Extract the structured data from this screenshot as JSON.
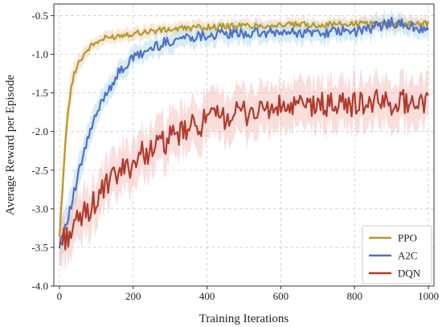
{
  "chart_data": {
    "type": "line",
    "xlabel": "Training Iterations",
    "ylabel": "Average Reward per Episode",
    "xlim": [
      -15,
      1015
    ],
    "ylim": [
      -4.0,
      -0.35
    ],
    "xticks": [
      0,
      200,
      400,
      600,
      800,
      1000
    ],
    "xtick_labels": [
      "0",
      "200",
      "400",
      "600",
      "800",
      "1000"
    ],
    "yticks": [
      -4.0,
      -3.5,
      -3.0,
      -2.5,
      -2.0,
      -1.5,
      -1.0,
      -0.5
    ],
    "ytick_labels": [
      "-4.0",
      "-3.5",
      "-3.0",
      "-2.5",
      "-2.0",
      "-1.5",
      "-1.0",
      "-0.5"
    ],
    "grid": true,
    "legend_position": "bottom-right",
    "series": [
      {
        "name": "PPO",
        "color": "#b59a2a",
        "band_color": "#f3c9a8",
        "x": [
          0,
          10,
          20,
          30,
          40,
          50,
          60,
          70,
          80,
          90,
          100,
          120,
          140,
          160,
          180,
          200,
          250,
          300,
          350,
          400,
          450,
          500,
          550,
          600,
          650,
          700,
          750,
          800,
          850,
          900,
          950,
          1000
        ],
        "y": [
          -3.4,
          -2.6,
          -1.9,
          -1.5,
          -1.25,
          -1.12,
          -1.05,
          -0.98,
          -0.92,
          -0.88,
          -0.85,
          -0.8,
          -0.78,
          -0.76,
          -0.74,
          -0.73,
          -0.7,
          -0.68,
          -0.66,
          -0.65,
          -0.64,
          -0.63,
          -0.63,
          -0.62,
          -0.62,
          -0.62,
          -0.61,
          -0.61,
          -0.6,
          -0.61,
          -0.6,
          -0.6
        ],
        "band": [
          0.35,
          0.3,
          0.25,
          0.2,
          0.15,
          0.12,
          0.1,
          0.09,
          0.08,
          0.08,
          0.08,
          0.08,
          0.08,
          0.08,
          0.08,
          0.08,
          0.08,
          0.08,
          0.08,
          0.08,
          0.08,
          0.08,
          0.08,
          0.08,
          0.08,
          0.08,
          0.08,
          0.08,
          0.08,
          0.08,
          0.08,
          0.08
        ]
      },
      {
        "name": "A2C",
        "color": "#4f6fc7",
        "band_color": "#a8d8ea",
        "x": [
          0,
          10,
          20,
          30,
          40,
          50,
          60,
          80,
          100,
          120,
          140,
          160,
          180,
          200,
          220,
          240,
          260,
          280,
          300,
          320,
          340,
          360,
          380,
          400,
          450,
          500,
          550,
          600,
          650,
          700,
          750,
          800,
          850,
          900,
          950,
          1000
        ],
        "y": [
          -3.45,
          -3.3,
          -3.15,
          -3.0,
          -2.8,
          -2.6,
          -2.4,
          -2.05,
          -1.8,
          -1.55,
          -1.4,
          -1.25,
          -1.15,
          -1.05,
          -1.0,
          -0.95,
          -0.9,
          -0.86,
          -0.83,
          -0.8,
          -0.78,
          -0.77,
          -0.76,
          -0.75,
          -0.74,
          -0.73,
          -0.73,
          -0.72,
          -0.72,
          -0.72,
          -0.71,
          -0.71,
          -0.66,
          -0.58,
          -0.64,
          -0.7
        ],
        "band": [
          0.25,
          0.25,
          0.25,
          0.25,
          0.25,
          0.22,
          0.2,
          0.18,
          0.16,
          0.15,
          0.14,
          0.13,
          0.12,
          0.12,
          0.12,
          0.12,
          0.12,
          0.12,
          0.12,
          0.12,
          0.12,
          0.12,
          0.12,
          0.12,
          0.12,
          0.12,
          0.12,
          0.12,
          0.12,
          0.12,
          0.12,
          0.12,
          0.12,
          0.12,
          0.12,
          0.12
        ]
      },
      {
        "name": "DQN",
        "color": "#b23a2c",
        "band_color": "#f2b6b2",
        "x": [
          0,
          20,
          40,
          60,
          80,
          100,
          120,
          140,
          160,
          180,
          200,
          220,
          240,
          260,
          280,
          300,
          320,
          340,
          360,
          380,
          400,
          450,
          500,
          550,
          600,
          650,
          700,
          750,
          800,
          850,
          900,
          950,
          1000
        ],
        "y": [
          -3.45,
          -3.35,
          -3.25,
          -3.1,
          -3.0,
          -2.9,
          -2.75,
          -2.65,
          -2.55,
          -2.48,
          -2.4,
          -2.3,
          -2.25,
          -2.2,
          -2.15,
          -2.1,
          -2.05,
          -2.0,
          -1.95,
          -1.9,
          -1.85,
          -1.8,
          -1.76,
          -1.72,
          -1.7,
          -1.68,
          -1.66,
          -1.65,
          -1.64,
          -1.63,
          -1.62,
          -1.61,
          -1.6
        ],
        "band": [
          0.3,
          0.3,
          0.3,
          0.3,
          0.3,
          0.3,
          0.3,
          0.3,
          0.3,
          0.3,
          0.3,
          0.3,
          0.3,
          0.3,
          0.3,
          0.3,
          0.3,
          0.3,
          0.3,
          0.3,
          0.3,
          0.3,
          0.3,
          0.3,
          0.3,
          0.3,
          0.3,
          0.3,
          0.3,
          0.3,
          0.3,
          0.3,
          0.3
        ]
      }
    ]
  }
}
